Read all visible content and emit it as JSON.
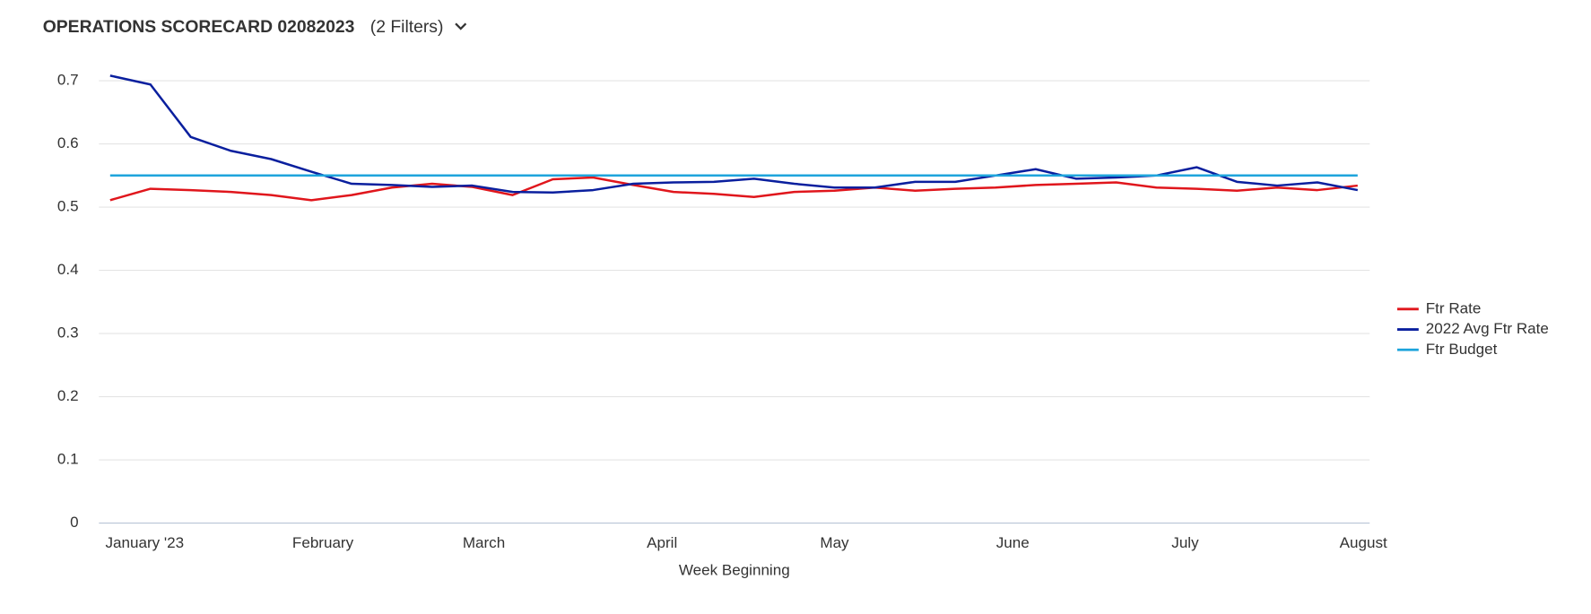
{
  "chart_data": {
    "type": "line",
    "title": "OPERATIONS SCORECARD 02082023",
    "subtitle": "(2 Filters)",
    "x_label": "Week Beginning",
    "x": [
      0,
      1,
      2,
      3,
      4,
      5,
      6,
      7,
      8,
      9,
      10,
      11,
      12,
      13,
      14,
      15,
      16,
      17,
      18,
      19,
      20,
      21,
      22,
      23,
      24,
      25,
      26,
      27,
      28,
      29,
      30,
      31
    ],
    "xlim": [
      -0.28,
      31.3
    ],
    "xticks": [
      {
        "value": 0.857,
        "label": "January '23"
      },
      {
        "value": 5.286,
        "label": "February"
      },
      {
        "value": 9.286,
        "label": "March"
      },
      {
        "value": 13.714,
        "label": "April"
      },
      {
        "value": 18,
        "label": "May"
      },
      {
        "value": 22.429,
        "label": "June"
      },
      {
        "value": 26.714,
        "label": "July"
      },
      {
        "value": 31.143,
        "label": "August"
      }
    ],
    "ylim": [
      0,
      0.7
    ],
    "yticks": [
      0,
      0.1,
      0.2,
      0.3,
      0.4,
      0.5,
      0.6,
      0.7
    ],
    "grid": true,
    "legend": "right",
    "series": [
      {
        "name": "Ftr Rate",
        "color": "#e0161c",
        "values": [
          0.511,
          0.529,
          0.527,
          0.524,
          0.519,
          0.511,
          0.519,
          0.531,
          0.537,
          0.532,
          0.519,
          0.544,
          0.547,
          0.535,
          0.524,
          0.521,
          0.516,
          0.524,
          0.526,
          0.531,
          0.526,
          0.529,
          0.531,
          0.535,
          0.537,
          0.539,
          0.531,
          0.529,
          0.526,
          0.531,
          0.527,
          0.534
        ]
      },
      {
        "name": "2022 Avg Ftr Rate",
        "color": "#0a1f9e",
        "values": [
          0.708,
          0.694,
          0.611,
          0.589,
          0.576,
          0.556,
          0.537,
          0.535,
          0.532,
          0.534,
          0.524,
          0.523,
          0.527,
          0.537,
          0.539,
          0.54,
          0.545,
          0.537,
          0.531,
          0.531,
          0.54,
          0.54,
          0.55,
          0.56,
          0.545,
          0.547,
          0.55,
          0.563,
          0.54,
          0.534,
          0.539,
          0.527
        ]
      },
      {
        "name": "Ftr Budget",
        "color": "#1ea4dc",
        "values": [
          0.55,
          0.55,
          0.55,
          0.55,
          0.55,
          0.55,
          0.55,
          0.55,
          0.55,
          0.55,
          0.55,
          0.55,
          0.55,
          0.55,
          0.55,
          0.55,
          0.55,
          0.55,
          0.55,
          0.55,
          0.55,
          0.55,
          0.55,
          0.55,
          0.55,
          0.55,
          0.55,
          0.55,
          0.55,
          0.55,
          0.55,
          0.55
        ]
      }
    ]
  }
}
